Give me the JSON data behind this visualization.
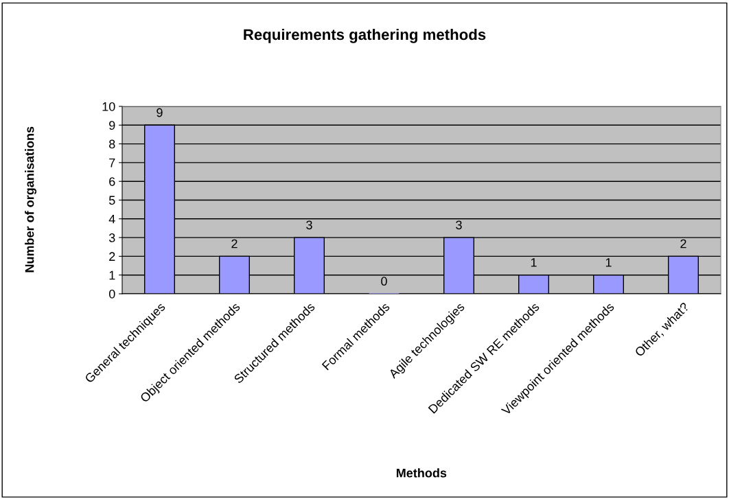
{
  "chart_data": {
    "type": "bar",
    "title": "Requirements gathering methods",
    "xlabel": "Methods",
    "ylabel": "Number of organisations",
    "categories": [
      "General techniques",
      "Object oriented methods",
      "Structured methods",
      "Formal methods",
      "Agile technologies",
      "Dedicated SW RE methods",
      "Viewpoint oriented methods",
      "Other, what?"
    ],
    "values": [
      9,
      2,
      3,
      0,
      3,
      1,
      1,
      2
    ],
    "color": "#9999ff",
    "ylim": [
      0,
      10
    ],
    "yticks": [
      0,
      1,
      2,
      3,
      4,
      5,
      6,
      7,
      8,
      9,
      10
    ],
    "grid": "y",
    "data_labels": true
  }
}
